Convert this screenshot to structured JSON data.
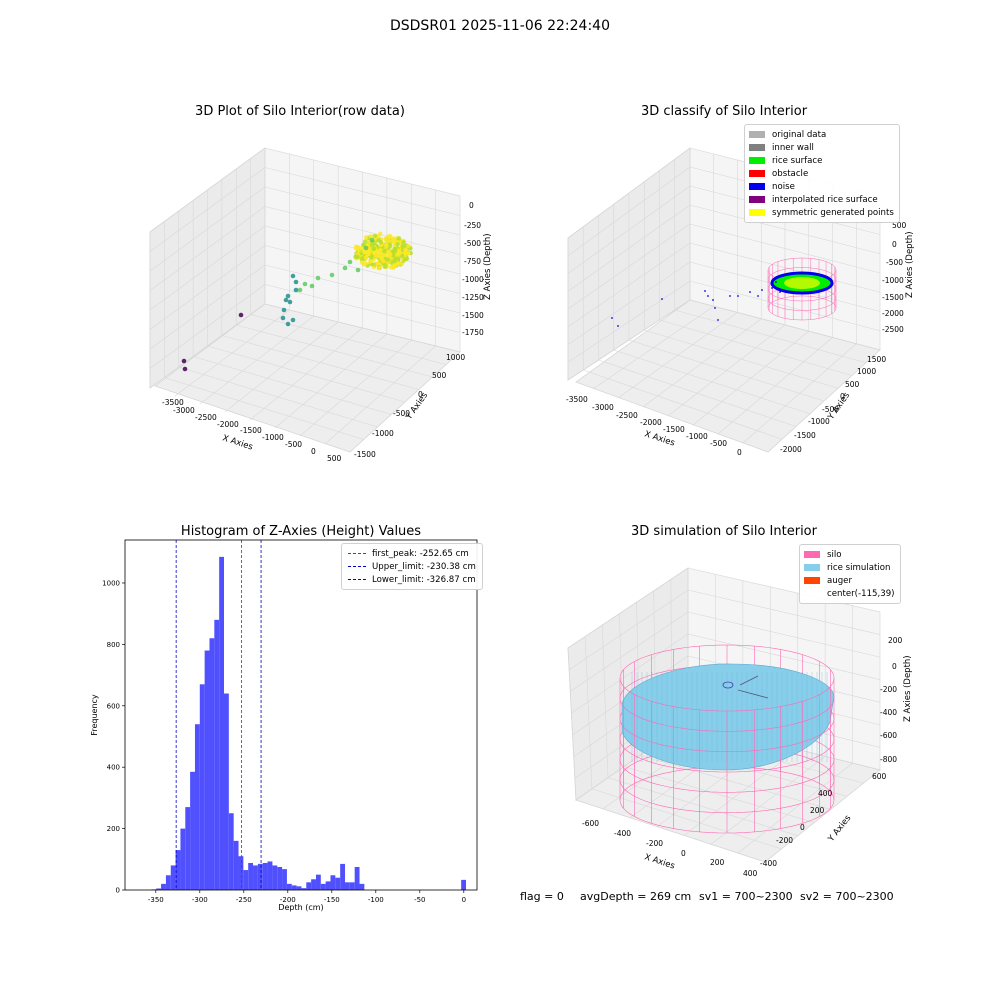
{
  "suptitle": "DSDSR01 2025-11-06 22:24:40",
  "footer": {
    "flag": "flag = 0",
    "avg_depth": "avgDepth = 269 cm",
    "sv1": "sv1 = 700~2300",
    "sv2": "sv2 = 700~2300"
  },
  "chart_data": [
    {
      "type": "scatter",
      "title": "3D Plot of Silo Interior(row data)",
      "xlabel": "X Axies",
      "ylabel": "Y Axies",
      "zlabel": "Z Axies (Depth)",
      "x_ticks": [
        -3500,
        -3000,
        -2500,
        -2000,
        -1500,
        -1000,
        -500,
        0,
        500
      ],
      "y_ticks": [
        -1500,
        -1000,
        -500,
        0,
        500,
        1000
      ],
      "z_ticks": [
        -1750,
        -1500,
        -1250,
        -1000,
        -750,
        -500,
        -250,
        0
      ],
      "xlim": [
        -3700,
        600
      ],
      "ylim": [
        -1600,
        1200
      ],
      "zlim": [
        -1900,
        100
      ],
      "colormap": [
        "#440154",
        "#21908d",
        "#5ec962",
        "#fde725"
      ]
    },
    {
      "type": "scatter",
      "title": "3D classify of Silo Interior",
      "xlabel": "X Axies",
      "ylabel": "Y Axies",
      "zlabel": "Z Axies (Depth)",
      "x_ticks": [
        -3500,
        -3000,
        -2500,
        -2000,
        -1500,
        -1000,
        -500,
        0
      ],
      "y_ticks": [
        -2000,
        -1500,
        -1000,
        -500,
        0,
        500,
        1000,
        1500
      ],
      "z_ticks": [
        -2500,
        -2000,
        -1500,
        -1000,
        -500,
        0,
        500
      ],
      "legend": [
        {
          "label": "original data",
          "color": "#b0b0b0"
        },
        {
          "label": "inner wall",
          "color": "#808080"
        },
        {
          "label": "rice surface",
          "color": "#00ee00"
        },
        {
          "label": "obstacle",
          "color": "#ff0000"
        },
        {
          "label": "noise",
          "color": "#0000ee"
        },
        {
          "label": "interpolated rice surface",
          "color": "#800080"
        },
        {
          "label": "symmetric generated points",
          "color": "#ffff00"
        }
      ],
      "legend_position": "top-right"
    },
    {
      "type": "bar",
      "title": "Histogram of Z-Axies (Height) Values",
      "xlabel": "Depth (cm)",
      "ylabel": "Frequency",
      "xlim": [
        -385,
        15
      ],
      "ylim": [
        0,
        1140
      ],
      "x_ticks": [
        -350,
        -300,
        -250,
        -200,
        -150,
        -100,
        -50,
        0
      ],
      "y_ticks": [
        0,
        200,
        400,
        600,
        800,
        1000
      ],
      "bin_width": 5.5,
      "bar_color": "#4a4aff",
      "bins": [
        {
          "x": -355,
          "count": 2
        },
        {
          "x": -349.5,
          "count": 5
        },
        {
          "x": -344,
          "count": 20
        },
        {
          "x": -338.5,
          "count": 48
        },
        {
          "x": -333,
          "count": 80
        },
        {
          "x": -327.5,
          "count": 130
        },
        {
          "x": -322,
          "count": 200
        },
        {
          "x": -316.5,
          "count": 270
        },
        {
          "x": -311,
          "count": 385
        },
        {
          "x": -305.5,
          "count": 540
        },
        {
          "x": -300,
          "count": 670
        },
        {
          "x": -294.5,
          "count": 780
        },
        {
          "x": -289,
          "count": 820
        },
        {
          "x": -283.5,
          "count": 880
        },
        {
          "x": -278,
          "count": 1085
        },
        {
          "x": -272.5,
          "count": 640
        },
        {
          "x": -267,
          "count": 250
        },
        {
          "x": -261.5,
          "count": 160
        },
        {
          "x": -256,
          "count": 110
        },
        {
          "x": -250.5,
          "count": 65
        },
        {
          "x": -245,
          "count": 88
        },
        {
          "x": -239.5,
          "count": 80
        },
        {
          "x": -234,
          "count": 85
        },
        {
          "x": -228.5,
          "count": 88
        },
        {
          "x": -223,
          "count": 93
        },
        {
          "x": -217.5,
          "count": 80
        },
        {
          "x": -212,
          "count": 75
        },
        {
          "x": -206.5,
          "count": 68
        },
        {
          "x": -201,
          "count": 20
        },
        {
          "x": -195.5,
          "count": 15
        },
        {
          "x": -190,
          "count": 12
        },
        {
          "x": -184.5,
          "count": 6
        },
        {
          "x": -179,
          "count": 25
        },
        {
          "x": -173.5,
          "count": 35
        },
        {
          "x": -168,
          "count": 50
        },
        {
          "x": -162.5,
          "count": 20
        },
        {
          "x": -157,
          "count": 28
        },
        {
          "x": -151.5,
          "count": 48
        },
        {
          "x": -146,
          "count": 40
        },
        {
          "x": -140.5,
          "count": 85
        },
        {
          "x": -135,
          "count": 25
        },
        {
          "x": -129.5,
          "count": 25
        },
        {
          "x": -124,
          "count": 75
        },
        {
          "x": -118.5,
          "count": 20
        },
        {
          "x": -3,
          "count": 33
        }
      ],
      "vlines": [
        {
          "label": "first_peak: -252.65 cm",
          "x": -252.65,
          "color": "#ff0000"
        },
        {
          "label": "Upper_limit: -230.38 cm",
          "x": -230.38,
          "color": "#0000cc"
        },
        {
          "label": "Lower_limit: -326.87 cm",
          "x": -326.87,
          "color": "#0000cc"
        }
      ],
      "legend_position": "top-right"
    },
    {
      "type": "scatter",
      "title": "3D simulation of Silo Interior",
      "xlabel": "X Axies",
      "ylabel": "Y Axies",
      "zlabel": "Z Axies (Depth)",
      "x_ticks": [
        -600,
        -400,
        -200,
        0,
        200,
        400
      ],
      "y_ticks": [
        -400,
        -200,
        0,
        200,
        400,
        600
      ],
      "z_ticks": [
        -800,
        -600,
        -400,
        -200,
        0,
        200
      ],
      "legend": [
        {
          "label": "silo",
          "color": "#ff69b4"
        },
        {
          "label": "rice simulation",
          "color": "#87ceeb"
        },
        {
          "label": "auger",
          "color": "#ff4500"
        },
        {
          "label": "center(-115,39)",
          "color": ""
        }
      ],
      "legend_position": "top-right"
    }
  ]
}
